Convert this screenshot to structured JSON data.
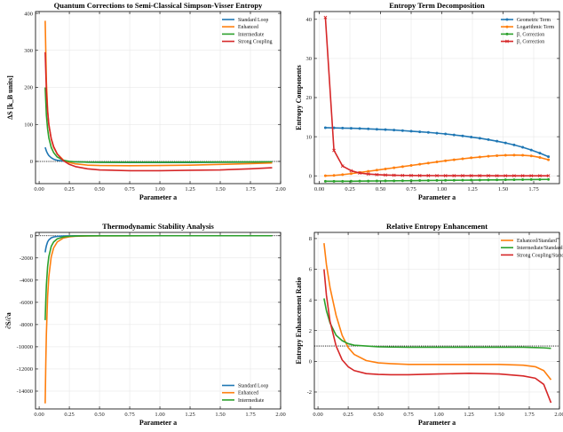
{
  "chart_data": [
    {
      "type": "line",
      "title": "Quantum Corrections to Semi-Classical Simpson-Visser Entropy",
      "xlabel": "Parameter a",
      "ylabel": "ΔS [k_B units]",
      "xlim": [
        -0.03,
        2.0
      ],
      "ylim": [
        -60,
        405
      ],
      "xticks": [
        "0.00",
        "0.25",
        "0.50",
        "0.75",
        "1.00",
        "1.25",
        "1.50",
        "1.75",
        "2.00"
      ],
      "yticks": [
        "0",
        "100",
        "200",
        "300",
        "400"
      ],
      "xtick_values": [
        0,
        0.25,
        0.5,
        0.75,
        1.0,
        1.25,
        1.5,
        1.75,
        2.0
      ],
      "ytick_values": [
        0,
        100,
        200,
        300,
        400
      ],
      "legend_position": "top-right",
      "reference_line": 0,
      "x": [
        0.05,
        0.06,
        0.07,
        0.08,
        0.1,
        0.12,
        0.15,
        0.2,
        0.25,
        0.3,
        0.4,
        0.5,
        0.75,
        1.0,
        1.25,
        1.5,
        1.75,
        1.93
      ],
      "series": [
        {
          "name": "Standard Loop",
          "color": "#1f77b4",
          "values": [
            38,
            28,
            21,
            16,
            10,
            6,
            3,
            0.8,
            -0.5,
            -1.2,
            -2,
            -2.5,
            -3,
            -3,
            -2.8,
            -2.5,
            -2,
            -1.5
          ]
        },
        {
          "name": "Enhanced",
          "color": "#ff7f0e",
          "values": [
            380,
            215,
            140,
            100,
            60,
            38,
            20,
            4,
            -3,
            -6.5,
            -10,
            -11,
            -11.5,
            -11,
            -10,
            -8,
            -6,
            -4
          ]
        },
        {
          "name": "Intermediate",
          "color": "#2ca02c",
          "values": [
            200,
            125,
            88,
            64,
            38,
            24,
            12,
            3,
            0,
            -1,
            -2,
            -2.2,
            -2.3,
            -2.2,
            -2,
            -1.8,
            -1.5,
            -1
          ]
        },
        {
          "name": "Strong Coupling",
          "color": "#d62728",
          "values": [
            295,
            190,
            135,
            100,
            62,
            40,
            20,
            2,
            -8,
            -14,
            -20,
            -23,
            -25,
            -25,
            -24,
            -23,
            -20,
            -17
          ]
        }
      ]
    },
    {
      "type": "line",
      "title": "Entropy Term Decomposition",
      "xlabel": "Parameter a",
      "ylabel": "Entropy Components",
      "xlim": [
        -0.04,
        1.96
      ],
      "ylim": [
        -2,
        42
      ],
      "xticks": [
        "0.00",
        "0.25",
        "0.50",
        "0.75",
        "1.00",
        "1.25",
        "1.50",
        "1.75"
      ],
      "yticks": [
        "0",
        "10",
        "20",
        "30",
        "40"
      ],
      "xtick_values": [
        0,
        0.25,
        0.5,
        0.75,
        1.0,
        1.25,
        1.5,
        1.75
      ],
      "ytick_values": [
        0,
        10,
        20,
        30,
        40
      ],
      "legend_position": "top-right",
      "x": [
        0.05,
        0.12,
        0.19,
        0.26,
        0.33,
        0.4,
        0.47,
        0.54,
        0.61,
        0.68,
        0.75,
        0.82,
        0.89,
        0.96,
        1.03,
        1.1,
        1.17,
        1.24,
        1.31,
        1.38,
        1.45,
        1.52,
        1.59,
        1.66,
        1.73,
        1.8,
        1.87
      ],
      "series": [
        {
          "name": "Geometric Term",
          "color": "#1f77b4",
          "marker": "circle",
          "values": [
            12.3,
            12.25,
            12.2,
            12.15,
            12.1,
            12.0,
            11.9,
            11.8,
            11.7,
            11.55,
            11.4,
            11.25,
            11.1,
            10.9,
            10.7,
            10.45,
            10.2,
            9.9,
            9.6,
            9.25,
            8.85,
            8.4,
            7.9,
            7.3,
            6.6,
            5.8,
            4.9
          ]
        },
        {
          "name": "Logarithmic Term",
          "color": "#ff7f0e",
          "marker": "circle",
          "values": [
            0,
            0.1,
            0.3,
            0.55,
            0.85,
            1.15,
            1.45,
            1.75,
            2.05,
            2.35,
            2.65,
            2.95,
            3.25,
            3.55,
            3.85,
            4.1,
            4.35,
            4.6,
            4.8,
            5.0,
            5.15,
            5.25,
            5.3,
            5.25,
            5.1,
            4.7,
            4.1
          ]
        },
        {
          "name": "β₁ Correction",
          "color": "#2ca02c",
          "marker": "circle",
          "values": [
            -1.4,
            -1.4,
            -1.4,
            -1.38,
            -1.36,
            -1.34,
            -1.32,
            -1.3,
            -1.28,
            -1.26,
            -1.24,
            -1.22,
            -1.2,
            -1.18,
            -1.16,
            -1.14,
            -1.12,
            -1.1,
            -1.08,
            -1.06,
            -1.04,
            -1.02,
            -1.0,
            -0.98,
            -0.96,
            -0.94,
            -0.92
          ]
        },
        {
          "name": "β₂ Correction",
          "color": "#d62728",
          "marker": "x",
          "values": [
            40.5,
            6.5,
            2.5,
            1.3,
            0.7,
            0.45,
            0.3,
            0.2,
            0.14,
            0.1,
            0.08,
            0.06,
            0.05,
            0.04,
            0.03,
            0.03,
            0.02,
            0.02,
            0.02,
            0.02,
            0.01,
            0.01,
            0.01,
            0.01,
            0.01,
            0.01,
            0.01
          ]
        }
      ]
    },
    {
      "type": "line",
      "title": "Thermodynamic Stability Analysis",
      "xlabel": "Parameter a",
      "ylabel": "∂S/∂a",
      "xlim": [
        -0.03,
        2.0
      ],
      "ylim": [
        -15600,
        300
      ],
      "xticks": [
        "0.00",
        "0.25",
        "0.50",
        "0.75",
        "1.00",
        "1.25",
        "1.50",
        "1.75",
        "2.00"
      ],
      "yticks": [
        "0",
        "-2000",
        "-4000",
        "-6000",
        "-8000",
        "-10000",
        "-12000",
        "-14000"
      ],
      "xtick_values": [
        0,
        0.25,
        0.5,
        0.75,
        1.0,
        1.25,
        1.5,
        1.75,
        2.0
      ],
      "ytick_values": [
        0,
        -2000,
        -4000,
        -6000,
        -8000,
        -10000,
        -12000,
        -14000
      ],
      "legend_position": "bottom-right",
      "reference_line": 0,
      "x": [
        0.05,
        0.055,
        0.06,
        0.07,
        0.08,
        0.1,
        0.12,
        0.15,
        0.2,
        0.25,
        0.3,
        0.4,
        0.5,
        1.0,
        1.5,
        1.93
      ],
      "series": [
        {
          "name": "Standard Loop",
          "color": "#1f77b4",
          "values": [
            -1500,
            -1150,
            -900,
            -560,
            -380,
            -190,
            -110,
            -55,
            -20,
            -9,
            -4,
            -1,
            0,
            0,
            0,
            0
          ]
        },
        {
          "name": "Enhanced",
          "color": "#ff7f0e",
          "values": [
            -15100,
            -11500,
            -8800,
            -5500,
            -3700,
            -1900,
            -1100,
            -560,
            -210,
            -95,
            -45,
            -12,
            -4,
            0,
            0,
            0
          ]
        },
        {
          "name": "Intermediate",
          "color": "#2ca02c",
          "values": [
            -7600,
            -5800,
            -4450,
            -2800,
            -1880,
            -960,
            -560,
            -280,
            -105,
            -48,
            -23,
            -6,
            -2,
            0,
            0,
            0
          ]
        }
      ]
    },
    {
      "type": "line",
      "title": "Relative Entropy Enhancement",
      "xlabel": "Parameter a",
      "ylabel": "Entropy Enhancement Ratio",
      "xlim": [
        -0.03,
        2.0
      ],
      "ylim": [
        -3.1,
        8.4
      ],
      "xticks": [
        "0.00",
        "0.25",
        "0.50",
        "0.75",
        "1.00",
        "1.25",
        "1.50",
        "1.75",
        "2.00"
      ],
      "yticks": [
        "-2",
        "0",
        "2",
        "4",
        "6",
        "8"
      ],
      "xtick_values": [
        0,
        0.25,
        0.5,
        0.75,
        1.0,
        1.25,
        1.5,
        1.75,
        2.0
      ],
      "ytick_values": [
        -2,
        0,
        2,
        4,
        6,
        8
      ],
      "legend_position": "top-right",
      "reference_line": 1,
      "x": [
        0.05,
        0.07,
        0.1,
        0.15,
        0.2,
        0.25,
        0.3,
        0.4,
        0.5,
        0.6,
        0.75,
        1.0,
        1.25,
        1.5,
        1.7,
        1.8,
        1.87,
        1.93
      ],
      "series": [
        {
          "name": "Enhanced/Standard",
          "color": "#ff7f0e",
          "values": [
            7.7,
            6.3,
            4.8,
            3.0,
            1.7,
            0.9,
            0.45,
            0.05,
            -0.1,
            -0.15,
            -0.2,
            -0.2,
            -0.2,
            -0.2,
            -0.25,
            -0.35,
            -0.6,
            -1.2
          ]
        },
        {
          "name": "Intermediate/Standard",
          "color": "#2ca02c",
          "values": [
            4.1,
            3.3,
            2.5,
            1.7,
            1.35,
            1.15,
            1.05,
            1.0,
            0.95,
            0.93,
            0.92,
            0.92,
            0.92,
            0.92,
            0.92,
            0.9,
            0.88,
            0.85
          ]
        },
        {
          "name": "Strong Coupling/Standard",
          "color": "#d62728",
          "values": [
            6.0,
            4.3,
            2.6,
            1.0,
            0.1,
            -0.35,
            -0.6,
            -0.8,
            -0.85,
            -0.87,
            -0.87,
            -0.82,
            -0.78,
            -0.82,
            -0.95,
            -1.1,
            -1.5,
            -2.7
          ]
        }
      ]
    }
  ]
}
